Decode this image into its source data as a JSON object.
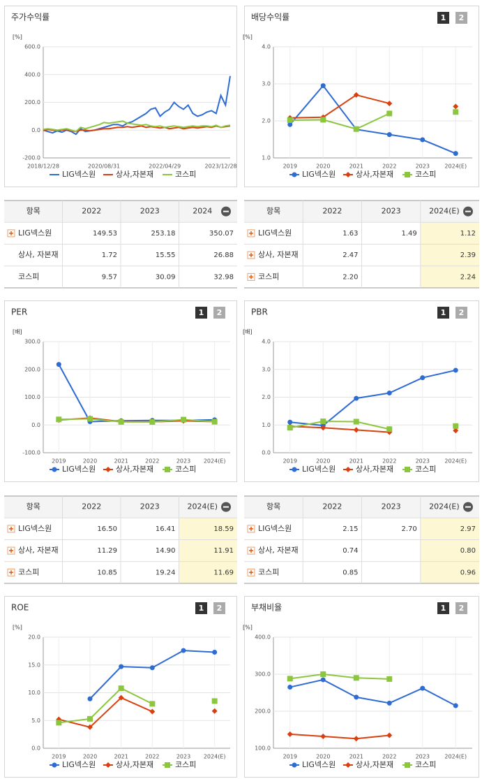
{
  "chart_buttons": [
    "1",
    "2"
  ],
  "chart_data": [
    {
      "type": "line",
      "title": "주가수익률",
      "unit": "[%]",
      "markers": false,
      "categories": [
        "2018/12/28",
        null,
        null,
        null,
        null,
        null,
        null,
        null,
        null,
        null,
        null,
        null,
        null,
        "2020/08/31",
        null,
        null,
        null,
        null,
        null,
        null,
        null,
        null,
        null,
        null,
        null,
        null,
        "2022/04/29",
        null,
        null,
        null,
        null,
        null,
        null,
        null,
        null,
        null,
        null,
        null,
        "2023/12/28",
        null,
        null
      ],
      "ylim": [
        -200,
        600
      ],
      "yticks": [
        {
          "value": -200,
          "label": "-200.0"
        },
        {
          "value": 0,
          "label": "0.0"
        },
        {
          "value": 200,
          "label": "200.0"
        },
        {
          "value": 400,
          "label": "400.0"
        },
        {
          "value": 600,
          "label": "600.0"
        }
      ],
      "series": [
        {
          "name": "LIG넥스원",
          "color": "#2e6bd3",
          "values": [
            0,
            -10,
            -20,
            -5,
            -15,
            0,
            -10,
            -30,
            10,
            -10,
            -5,
            0,
            10,
            20,
            30,
            40,
            40,
            30,
            50,
            60,
            80,
            100,
            120,
            150,
            160,
            100,
            130,
            150,
            200,
            170,
            150,
            180,
            120,
            100,
            110,
            130,
            140,
            120,
            250,
            180,
            390
          ]
        },
        {
          "name": "상사,자본재",
          "color": "#d9400f",
          "values": [
            0,
            5,
            0,
            -5,
            0,
            5,
            -5,
            -10,
            0,
            0,
            -5,
            0,
            5,
            10,
            10,
            15,
            20,
            20,
            25,
            20,
            25,
            30,
            20,
            25,
            20,
            15,
            20,
            10,
            15,
            20,
            10,
            15,
            20,
            15,
            20,
            25,
            20,
            30,
            20,
            25,
            30
          ]
        },
        {
          "name": "코스피",
          "color": "#8cc63f",
          "values": [
            5,
            10,
            5,
            0,
            5,
            10,
            0,
            -10,
            20,
            10,
            20,
            30,
            40,
            55,
            50,
            55,
            60,
            65,
            50,
            45,
            40,
            35,
            40,
            30,
            25,
            30,
            20,
            25,
            30,
            25,
            20,
            25,
            30,
            25,
            30,
            30,
            25,
            35,
            20,
            30,
            35
          ]
        }
      ]
    },
    {
      "type": "line",
      "title": "배당수익률",
      "unit": "[%]",
      "markers": true,
      "categories": [
        "2019",
        "2020",
        "2021",
        "2022",
        "2023",
        "2024(E)"
      ],
      "ylim": [
        1,
        4
      ],
      "yticks": [
        {
          "value": 1,
          "label": "1.0"
        },
        {
          "value": 2,
          "label": "2.0"
        },
        {
          "value": 3,
          "label": "3.0"
        },
        {
          "value": 4,
          "label": "4.0"
        }
      ],
      "series": [
        {
          "name": "LIG넥스원",
          "color": "#2e6bd3",
          "values": [
            1.9,
            2.95,
            1.77,
            1.63,
            1.49,
            1.12
          ]
        },
        {
          "name": "상사,자본재",
          "color": "#d9400f",
          "values": [
            2.08,
            2.1,
            2.7,
            2.47,
            null,
            2.39
          ]
        },
        {
          "name": "코스피",
          "color": "#8cc63f",
          "values": [
            2.02,
            2.03,
            1.78,
            2.2,
            null,
            2.24
          ]
        }
      ]
    },
    {
      "type": "line",
      "title": "PER",
      "unit": "[배]",
      "markers": true,
      "categories": [
        "2019",
        "2020",
        "2021",
        "2022",
        "2023",
        "2024(E)"
      ],
      "ylim": [
        -100,
        300
      ],
      "yticks": [
        {
          "value": -100,
          "label": "-100.0"
        },
        {
          "value": 0,
          "label": "0.0"
        },
        {
          "value": 100,
          "label": "100.0"
        },
        {
          "value": 200,
          "label": "200.0"
        },
        {
          "value": 300,
          "label": "300.0"
        }
      ],
      "series": [
        {
          "name": "LIG넥스원",
          "color": "#2e6bd3",
          "values": [
            218,
            12,
            15,
            16.5,
            16.41,
            18.59
          ]
        },
        {
          "name": "상사,자본재",
          "color": "#d9400f",
          "values": [
            18,
            25,
            12,
            11.29,
            14.9,
            11.91
          ]
        },
        {
          "name": "코스피",
          "color": "#8cc63f",
          "values": [
            20,
            22,
            11,
            10.85,
            19.24,
            11.69
          ]
        }
      ]
    },
    {
      "type": "line",
      "title": "PBR",
      "unit": "[배]",
      "markers": true,
      "categories": [
        "2019",
        "2020",
        "2021",
        "2022",
        "2023",
        "2024(E)"
      ],
      "ylim": [
        0,
        4
      ],
      "yticks": [
        {
          "value": 0,
          "label": "0.0"
        },
        {
          "value": 1,
          "label": "1.0"
        },
        {
          "value": 2,
          "label": "2.0"
        },
        {
          "value": 3,
          "label": "3.0"
        },
        {
          "value": 4,
          "label": "4.0"
        }
      ],
      "series": [
        {
          "name": "LIG넥스원",
          "color": "#2e6bd3",
          "values": [
            1.1,
            0.98,
            1.96,
            2.15,
            2.7,
            2.97
          ]
        },
        {
          "name": "상사,자본재",
          "color": "#d9400f",
          "values": [
            0.95,
            0.9,
            0.82,
            0.74,
            null,
            0.8
          ]
        },
        {
          "name": "코스피",
          "color": "#8cc63f",
          "values": [
            0.9,
            1.13,
            1.12,
            0.85,
            null,
            0.96
          ]
        }
      ]
    },
    {
      "type": "line",
      "title": "ROE",
      "unit": "[%]",
      "markers": true,
      "categories": [
        "2019",
        "2020",
        "2021",
        "2022",
        "2023",
        "2024(E)"
      ],
      "ylim": [
        0,
        20
      ],
      "yticks": [
        {
          "value": 0,
          "label": "0.0"
        },
        {
          "value": 5,
          "label": "5.0"
        },
        {
          "value": 10,
          "label": "10.0"
        },
        {
          "value": 15,
          "label": "15.0"
        },
        {
          "value": 20,
          "label": "20.0"
        }
      ],
      "series": [
        {
          "name": "LIG넥스원",
          "color": "#2e6bd3",
          "values": [
            null,
            8.9,
            14.7,
            14.5,
            17.6,
            17.3
          ]
        },
        {
          "name": "상사,자본재",
          "color": "#d9400f",
          "values": [
            5.2,
            3.8,
            9.1,
            6.6,
            null,
            6.7
          ]
        },
        {
          "name": "코스피",
          "color": "#8cc63f",
          "values": [
            4.6,
            5.3,
            10.8,
            8.0,
            null,
            8.5
          ]
        }
      ]
    },
    {
      "type": "line",
      "title": "부채비율",
      "unit": "[%]",
      "markers": true,
      "categories": [
        "2019",
        "2020",
        "2021",
        "2022",
        "2023",
        "2024(E)"
      ],
      "ylim": [
        100,
        400
      ],
      "yticks": [
        {
          "value": 100,
          "label": "100.0"
        },
        {
          "value": 200,
          "label": "200.0"
        },
        {
          "value": 300,
          "label": "300.0"
        },
        {
          "value": 400,
          "label": "400.0"
        }
      ],
      "series": [
        {
          "name": "LIG넥스원",
          "color": "#2e6bd3",
          "values": [
            265,
            285,
            238,
            222,
            262,
            215
          ]
        },
        {
          "name": "상사,자본재",
          "color": "#d9400f",
          "values": [
            138,
            132,
            126,
            135,
            null,
            null
          ]
        },
        {
          "name": "코스피",
          "color": "#8cc63f",
          "values": [
            288,
            300,
            290,
            287,
            null,
            null
          ]
        }
      ]
    }
  ],
  "tables": [
    {
      "header": [
        "항목",
        "2022",
        "2023",
        "2024"
      ],
      "rows": [
        [
          "LIG넥스원",
          "149.53",
          "253.18",
          "350.07"
        ],
        [
          "상사, 자본재",
          "1.72",
          "15.55",
          "26.88"
        ],
        [
          "코스피",
          "9.57",
          "30.09",
          "32.98"
        ]
      ]
    },
    {
      "header": [
        "항목",
        "2022",
        "2023",
        "2024(E)"
      ],
      "rows": [
        [
          "LIG넥스원",
          "1.63",
          "1.49",
          "1.12"
        ],
        [
          "상사, 자본재",
          "2.47",
          null,
          "2.39"
        ],
        [
          "코스피",
          "2.20",
          null,
          "2.24"
        ]
      ]
    },
    {
      "header": [
        "항목",
        "2022",
        "2023",
        "2024(E)"
      ],
      "rows": [
        [
          "LIG넥스원",
          "16.50",
          "16.41",
          "18.59"
        ],
        [
          "상사, 자본재",
          "11.29",
          "14.90",
          "11.91"
        ],
        [
          "코스피",
          "10.85",
          "19.24",
          "11.69"
        ]
      ]
    },
    {
      "header": [
        "항목",
        "2022",
        "2023",
        "2024(E)"
      ],
      "rows": [
        [
          "LIG넥스원",
          "2.15",
          "2.70",
          "2.97"
        ],
        [
          "상사, 자본재",
          "0.74",
          null,
          "0.80"
        ],
        [
          "코스피",
          "0.85",
          null,
          "0.96"
        ]
      ]
    }
  ]
}
